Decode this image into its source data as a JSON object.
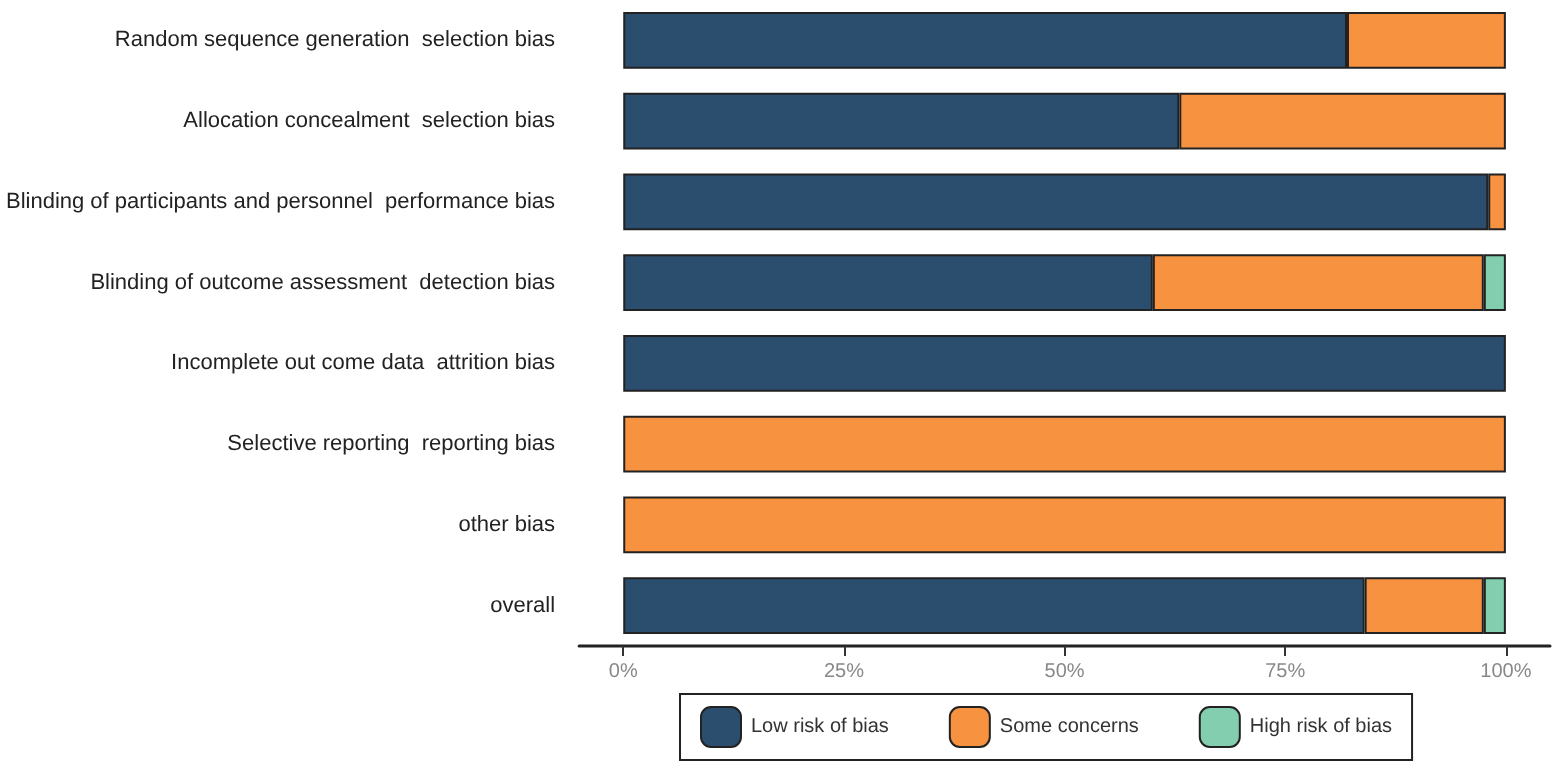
{
  "chart_data": {
    "type": "bar",
    "orientation": "horizontal",
    "stacked": true,
    "categories": [
      "Random sequence generation  selection bias",
      "Allocation concealment  selection bias",
      "Blinding of participants and personnel  performance bias",
      "Blinding of outcome assessment  detection bias",
      "Incomplete out come data  attrition bias",
      "Selective reporting  reporting bias",
      "other bias",
      "overall"
    ],
    "series": [
      {
        "name": "Low risk of bias",
        "color": "#2b4e6f",
        "values": [
          82,
          63,
          98,
          60,
          100,
          0,
          0,
          84
        ]
      },
      {
        "name": "Some concerns",
        "color": "#f79240",
        "values": [
          18,
          37,
          2,
          37.5,
          0,
          100,
          100,
          13.5
        ]
      },
      {
        "name": "High risk of bias",
        "color": "#84ceb0",
        "values": [
          0,
          0,
          0,
          2.5,
          0,
          0,
          0,
          2.5
        ]
      }
    ],
    "xlim": [
      -5,
      105
    ],
    "xticks": [
      {
        "value": 0,
        "label": "0%"
      },
      {
        "value": 25,
        "label": "25%"
      },
      {
        "value": 50,
        "label": "50%"
      },
      {
        "value": 75,
        "label": "75%"
      },
      {
        "value": 100,
        "label": "100%"
      }
    ],
    "grid": false,
    "legend": "bottom"
  }
}
